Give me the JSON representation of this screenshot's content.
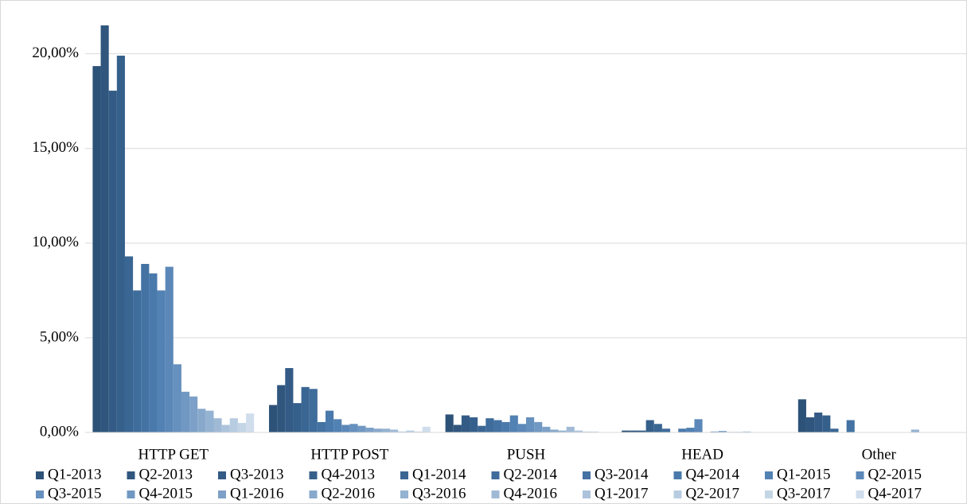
{
  "chart_data": {
    "type": "bar",
    "categories": [
      "HTTP GET",
      "HTTP POST",
      "PUSH",
      "HEAD",
      "Other"
    ],
    "ylim": [
      0,
      22
    ],
    "yticks": [
      {
        "value": 0,
        "label": "0,00%"
      },
      {
        "value": 5,
        "label": "5,00%"
      },
      {
        "value": 10,
        "label": "10,00%"
      },
      {
        "value": 15,
        "label": "15,00%"
      },
      {
        "value": 20,
        "label": "20,00%"
      }
    ],
    "grid": true,
    "legend": "bottom",
    "series": [
      {
        "name": "Q1-2013",
        "color": "#2d5278",
        "values": [
          19.35,
          1.45,
          0.95,
          0.1,
          1.75
        ]
      },
      {
        "name": "Q2-2013",
        "color": "#30567e",
        "values": [
          21.5,
          2.5,
          0.4,
          0.1,
          0.8
        ]
      },
      {
        "name": "Q3-2013",
        "color": "#335b85",
        "values": [
          18.05,
          3.4,
          0.9,
          0.1,
          1.05
        ]
      },
      {
        "name": "Q4-2013",
        "color": "#36608c",
        "values": [
          19.9,
          1.55,
          0.8,
          0.65,
          0.9
        ]
      },
      {
        "name": "Q1-2014",
        "color": "#3a6693",
        "values": [
          9.3,
          2.4,
          0.35,
          0.45,
          0.2
        ]
      },
      {
        "name": "Q2-2014",
        "color": "#3e6c9b",
        "values": [
          7.5,
          2.3,
          0.75,
          0.2,
          0.02
        ]
      },
      {
        "name": "Q3-2014",
        "color": "#4372a3",
        "values": [
          8.9,
          0.55,
          0.65,
          0.02,
          0.65
        ]
      },
      {
        "name": "Q4-2014",
        "color": "#4a7aac",
        "values": [
          8.4,
          1.15,
          0.55,
          0.2,
          0.02
        ]
      },
      {
        "name": "Q1-2015",
        "color": "#5281b3",
        "values": [
          7.5,
          0.7,
          0.9,
          0.25,
          0.02
        ]
      },
      {
        "name": "Q2-2015",
        "color": "#5b88b8",
        "values": [
          8.75,
          0.4,
          0.45,
          0.7,
          0.02
        ]
      },
      {
        "name": "Q3-2015",
        "color": "#6690bd",
        "values": [
          3.6,
          0.45,
          0.8,
          0.02,
          0.02
        ]
      },
      {
        "name": "Q4-2015",
        "color": "#7198c2",
        "values": [
          2.15,
          0.35,
          0.55,
          0.05,
          0.02
        ]
      },
      {
        "name": "Q1-2016",
        "color": "#7ca0c7",
        "values": [
          1.9,
          0.25,
          0.3,
          0.08,
          0.02
        ]
      },
      {
        "name": "Q2-2016",
        "color": "#88a9cc",
        "values": [
          1.25,
          0.2,
          0.15,
          0.03,
          0.02
        ]
      },
      {
        "name": "Q3-2016",
        "color": "#94b2d1",
        "values": [
          1.15,
          0.2,
          0.1,
          0.03,
          0.15
        ]
      },
      {
        "name": "Q4-2016",
        "color": "#a0bad6",
        "values": [
          0.75,
          0.15,
          0.3,
          0.05,
          0.02
        ]
      },
      {
        "name": "Q1-2017",
        "color": "#acc3db",
        "values": [
          0.4,
          0.05,
          0.1,
          0.02,
          0.02
        ]
      },
      {
        "name": "Q2-2017",
        "color": "#b8cce1",
        "values": [
          0.75,
          0.1,
          0.05,
          0.02,
          0.02
        ]
      },
      {
        "name": "Q3-2017",
        "color": "#c4d5e6",
        "values": [
          0.5,
          0.05,
          0.05,
          0.02,
          0.02
        ]
      },
      {
        "name": "Q4-2017",
        "color": "#d0ddec",
        "values": [
          1.0,
          0.3,
          0.02,
          0.02,
          0.02
        ]
      }
    ]
  }
}
